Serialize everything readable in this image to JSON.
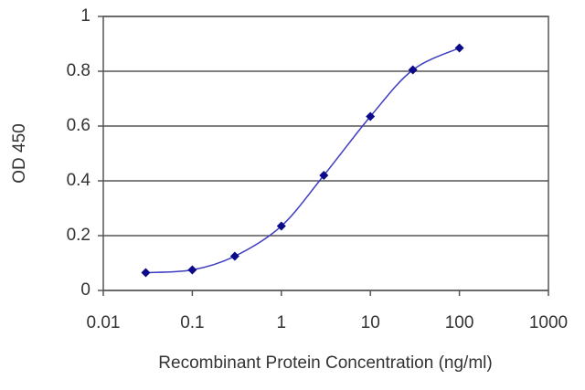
{
  "chart_data": {
    "type": "line",
    "x_label": "Recombinant Protein Concentration (ng/ml)",
    "y_label": "OD 450",
    "x": [
      0.03,
      0.1,
      0.3,
      1,
      3,
      10,
      30,
      100
    ],
    "values": [
      0.065,
      0.075,
      0.125,
      0.235,
      0.42,
      0.635,
      0.805,
      0.885
    ],
    "color": "#3d3dbf",
    "marker_color": "#0a0a8a",
    "xlim": [
      0.01,
      1000
    ],
    "xticks": [
      0.01,
      0.1,
      1,
      10,
      100,
      1000
    ],
    "xlog": true,
    "ylim": [
      0,
      1
    ],
    "yticks": [
      0,
      0.2,
      0.4,
      0.6,
      0.8,
      1
    ],
    "grid": true
  }
}
